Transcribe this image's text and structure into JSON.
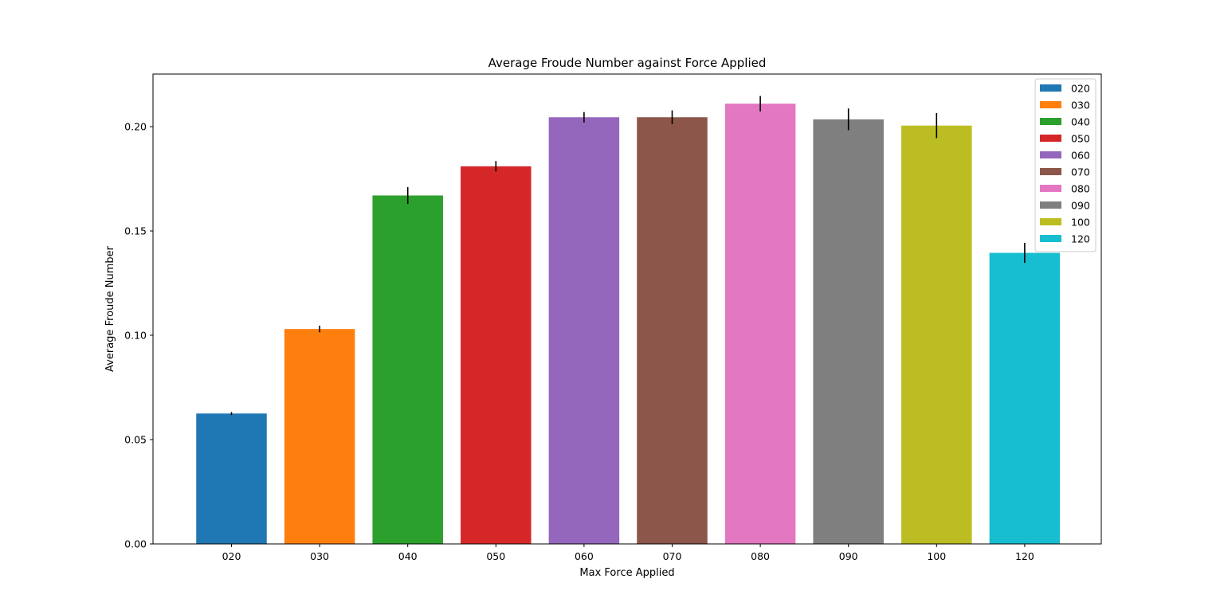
{
  "chart_data": {
    "type": "bar",
    "title": "Average Froude Number against Force Applied",
    "xlabel": "Max Force Applied",
    "ylabel": "Average Froude Number",
    "categories": [
      "020",
      "030",
      "040",
      "050",
      "060",
      "070",
      "080",
      "090",
      "100",
      "120"
    ],
    "values": [
      0.0625,
      0.103,
      0.167,
      0.181,
      0.2045,
      0.2045,
      0.211,
      0.2035,
      0.2005,
      0.1395
    ],
    "errors": [
      0.0007,
      0.0016,
      0.004,
      0.0025,
      0.0025,
      0.0033,
      0.0037,
      0.0052,
      0.006,
      0.0048
    ],
    "colors": [
      "#1f77b4",
      "#ff7f0e",
      "#2ca02c",
      "#d62728",
      "#9467bd",
      "#8c564b",
      "#e377c2",
      "#7f7f7f",
      "#bcbd22",
      "#17becf"
    ],
    "ylim": [
      0,
      0.2252
    ],
    "yticks": [
      0.0,
      0.05,
      0.1,
      0.15,
      0.2
    ],
    "ytick_labels": [
      "0.00",
      "0.05",
      "0.10",
      "0.15",
      "0.20"
    ],
    "grid": false,
    "legend": {
      "placement": "top-right",
      "entries": [
        "020",
        "030",
        "040",
        "050",
        "060",
        "070",
        "080",
        "090",
        "100",
        "120"
      ]
    }
  }
}
